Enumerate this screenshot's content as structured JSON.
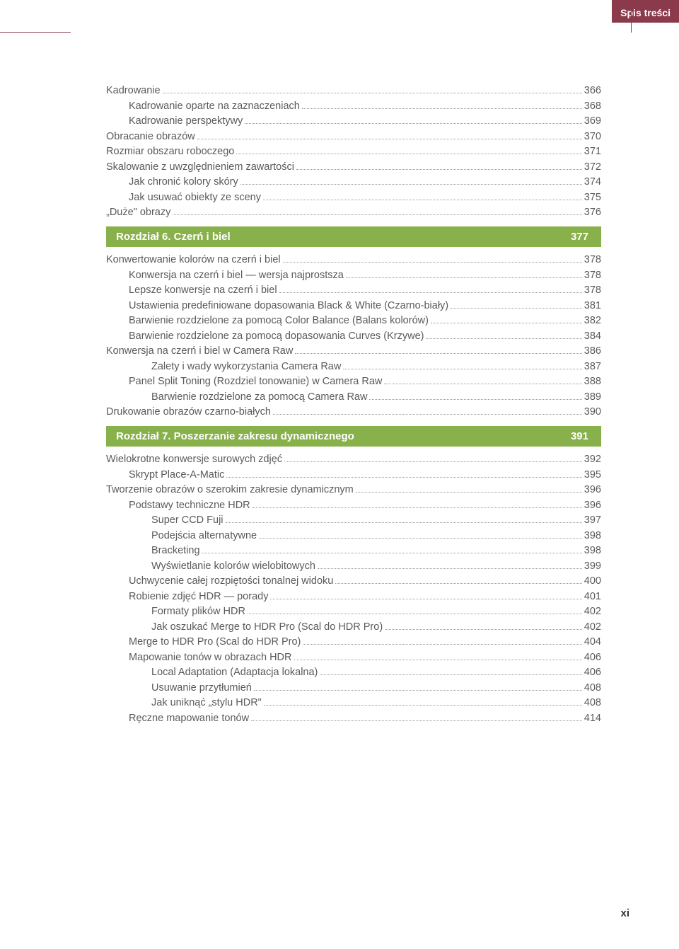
{
  "header": {
    "tab_label": "Spis treści"
  },
  "colors": {
    "tab_bg": "#8b3a4c",
    "chapter_bg": "#88b04b",
    "text": "#5a5a5a",
    "dots": "#9a9a9a"
  },
  "page_number_roman": "xi",
  "toc": [
    {
      "kind": "entry",
      "indent": 0,
      "label": "Kadrowanie",
      "page": "366"
    },
    {
      "kind": "entry",
      "indent": 1,
      "label": "Kadrowanie oparte na zaznaczeniach",
      "page": "368"
    },
    {
      "kind": "entry",
      "indent": 1,
      "label": "Kadrowanie perspektywy",
      "page": "369"
    },
    {
      "kind": "entry",
      "indent": 0,
      "label": "Obracanie obrazów",
      "page": "370"
    },
    {
      "kind": "entry",
      "indent": 0,
      "label": "Rozmiar obszaru roboczego",
      "page": "371"
    },
    {
      "kind": "entry",
      "indent": 0,
      "label": "Skalowanie z uwzględnieniem zawartości",
      "page": "372"
    },
    {
      "kind": "entry",
      "indent": 1,
      "label": "Jak chronić kolory skóry",
      "page": "374"
    },
    {
      "kind": "entry",
      "indent": 1,
      "label": "Jak usuwać obiekty ze sceny",
      "page": "375"
    },
    {
      "kind": "entry",
      "indent": 0,
      "label": "„Duże\" obrazy",
      "page": "376"
    },
    {
      "kind": "chapter",
      "title": "Rozdział 6.  Czerń i biel",
      "page": "377"
    },
    {
      "kind": "entry",
      "indent": 0,
      "label": "Konwertowanie kolorów na czerń i biel",
      "page": "378"
    },
    {
      "kind": "entry",
      "indent": 1,
      "label": "Konwersja na czerń i biel — wersja najprostsza",
      "page": "378"
    },
    {
      "kind": "entry",
      "indent": 1,
      "label": "Lepsze konwersje na czerń i biel",
      "page": "378"
    },
    {
      "kind": "entry",
      "indent": 1,
      "label": "Ustawienia predefiniowane dopasowania Black & White (Czarno-biały)",
      "page": "381"
    },
    {
      "kind": "entry",
      "indent": 1,
      "label": "Barwienie rozdzielone za pomocą Color Balance (Balans kolorów)",
      "page": "382"
    },
    {
      "kind": "entry",
      "indent": 1,
      "label": "Barwienie rozdzielone za pomocą dopasowania Curves (Krzywe)",
      "page": "384"
    },
    {
      "kind": "entry",
      "indent": 0,
      "label": "Konwersja na czerń i biel w Camera Raw",
      "page": "386"
    },
    {
      "kind": "entry",
      "indent": 2,
      "label": "Zalety i wady wykorzystania Camera Raw",
      "page": "387"
    },
    {
      "kind": "entry",
      "indent": 1,
      "label": "Panel Split Toning (Rozdziel tonowanie) w Camera Raw",
      "page": "388"
    },
    {
      "kind": "entry",
      "indent": 2,
      "label": "Barwienie rozdzielone za pomocą Camera Raw",
      "page": "389"
    },
    {
      "kind": "entry",
      "indent": 0,
      "label": "Drukowanie obrazów czarno-białych",
      "page": "390"
    },
    {
      "kind": "chapter",
      "title": "Rozdział 7.  Poszerzanie zakresu dynamicznego",
      "page": "391"
    },
    {
      "kind": "entry",
      "indent": 0,
      "label": "Wielokrotne konwersje surowych zdjęć",
      "page": "392"
    },
    {
      "kind": "entry",
      "indent": 1,
      "label": "Skrypt Place-A-Matic",
      "page": "395"
    },
    {
      "kind": "entry",
      "indent": 0,
      "label": "Tworzenie obrazów o szerokim zakresie dynamicznym",
      "page": "396"
    },
    {
      "kind": "entry",
      "indent": 1,
      "label": "Podstawy techniczne HDR",
      "page": "396"
    },
    {
      "kind": "entry",
      "indent": 2,
      "label": "Super CCD Fuji",
      "page": "397"
    },
    {
      "kind": "entry",
      "indent": 2,
      "label": "Podejścia alternatywne",
      "page": "398"
    },
    {
      "kind": "entry",
      "indent": 2,
      "label": "Bracketing",
      "page": "398"
    },
    {
      "kind": "entry",
      "indent": 2,
      "label": "Wyświetlanie kolorów wielobitowych",
      "page": "399"
    },
    {
      "kind": "entry",
      "indent": 1,
      "label": "Uchwycenie całej rozpiętości tonalnej widoku",
      "page": "400"
    },
    {
      "kind": "entry",
      "indent": 1,
      "label": "Robienie zdjęć HDR — porady",
      "page": "401"
    },
    {
      "kind": "entry",
      "indent": 2,
      "label": "Formaty plików HDR",
      "page": "402"
    },
    {
      "kind": "entry",
      "indent": 2,
      "label": "Jak oszukać Merge to HDR Pro (Scal do HDR Pro)",
      "page": "402"
    },
    {
      "kind": "entry",
      "indent": 1,
      "label": "Merge to HDR Pro (Scal do HDR Pro)",
      "page": "404"
    },
    {
      "kind": "entry",
      "indent": 1,
      "label": "Mapowanie tonów w obrazach HDR",
      "page": "406"
    },
    {
      "kind": "entry",
      "indent": 2,
      "label": "Local Adaptation (Adaptacja lokalna)",
      "page": "406"
    },
    {
      "kind": "entry",
      "indent": 2,
      "label": "Usuwanie przytłumień",
      "page": "408"
    },
    {
      "kind": "entry",
      "indent": 2,
      "label": "Jak uniknąć „stylu HDR\"",
      "page": "408"
    },
    {
      "kind": "entry",
      "indent": 1,
      "label": "Ręczne mapowanie tonów",
      "page": "414"
    }
  ]
}
